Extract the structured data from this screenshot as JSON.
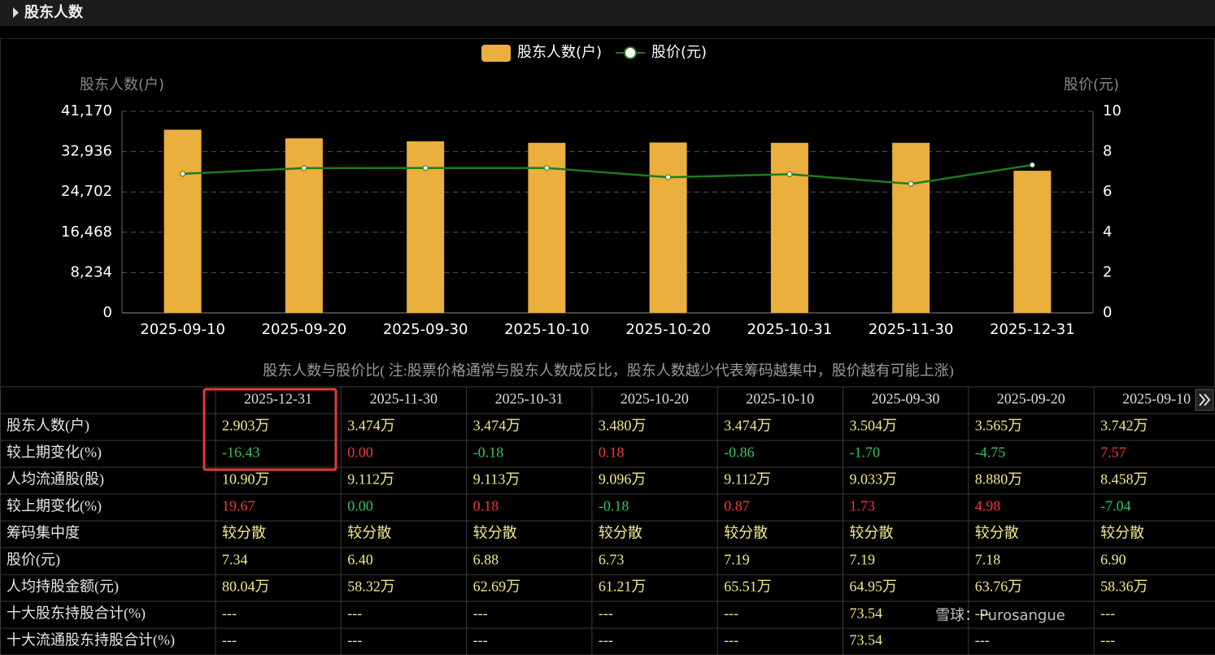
{
  "header": {
    "title": "股东人数"
  },
  "chart_data": {
    "type": "bar",
    "categories": [
      "2025-09-10",
      "2025-09-20",
      "2025-09-30",
      "2025-10-10",
      "2025-10-20",
      "2025-10-31",
      "2025-11-30",
      "2025-12-31"
    ],
    "series": [
      {
        "name": "股东人数(户)",
        "color": "#eaaf3c",
        "values": [
          37420,
          35650,
          35040,
          34740,
          34800,
          34740,
          34740,
          29030
        ]
      },
      {
        "name": "股价(元)",
        "type": "line",
        "axis": "y2",
        "color": "#1f7a1f",
        "values": [
          6.9,
          7.18,
          7.19,
          7.19,
          6.73,
          6.88,
          6.4,
          7.34
        ]
      }
    ],
    "y_label": "股东人数(户)",
    "y2_label": "股价(元)",
    "ylim": [
      0,
      41170
    ],
    "yticks": [
      0,
      {
        "value": 8234,
        "label": "8,234"
      },
      {
        "value": 16468,
        "label": "16,468"
      },
      {
        "value": 24702,
        "label": "24,702"
      },
      {
        "value": 32936,
        "label": "32,936"
      },
      {
        "value": 41170,
        "label": "41,170"
      }
    ],
    "y2lim": [
      0,
      10
    ],
    "y2ticks": [
      0,
      2,
      4,
      6,
      8,
      10
    ],
    "grid": true,
    "legend": "top"
  },
  "caption": "股东人数与股价比( 注:股票价格通常与股东人数成反比，股东人数越少代表筹码越集中，股价越有可能上涨)",
  "table": {
    "columns": [
      "2025-12-31",
      "2025-11-30",
      "2025-10-31",
      "2025-10-20",
      "2025-10-10",
      "2025-09-30",
      "2025-09-20",
      "2025-09-10"
    ],
    "rows": [
      {
        "label": "股东人数(户)",
        "cells": [
          "2.903万",
          "3.474万",
          "3.474万",
          "3.480万",
          "3.474万",
          "3.504万",
          "3.565万",
          "3.742万"
        ],
        "color": "#f2e98a"
      },
      {
        "label": "较上期变化(%)",
        "cells": [
          "-16.43",
          "0.00",
          "-0.18",
          "0.18",
          "-0.86",
          "-1.70",
          "-4.75",
          "7.57"
        ],
        "colors": [
          "#35c45a",
          "#ee3b3b",
          "#35c45a",
          "#ee3b3b",
          "#35c45a",
          "#35c45a",
          "#35c45a",
          "#ee3b3b"
        ]
      },
      {
        "label": "人均流通股(股)",
        "cells": [
          "10.90万",
          "9.112万",
          "9.113万",
          "9.096万",
          "9.112万",
          "9.033万",
          "8.880万",
          "8.458万"
        ],
        "color": "#f2e98a"
      },
      {
        "label": "较上期变化(%)",
        "cells": [
          "19.67",
          "0.00",
          "0.18",
          "-0.18",
          "0.87",
          "1.73",
          "4.98",
          "-7.04"
        ],
        "colors": [
          "#ee3b3b",
          "#35c45a",
          "#ee3b3b",
          "#35c45a",
          "#ee3b3b",
          "#ee3b3b",
          "#ee3b3b",
          "#35c45a"
        ]
      },
      {
        "label": "筹码集中度",
        "cells": [
          "较分散",
          "较分散",
          "较分散",
          "较分散",
          "较分散",
          "较分散",
          "较分散",
          "较分散"
        ],
        "color": "#f2e98a"
      },
      {
        "label": "股价(元)",
        "cells": [
          "7.34",
          "6.40",
          "6.88",
          "6.73",
          "7.19",
          "7.19",
          "7.18",
          "6.90"
        ],
        "color": "#f2e98a"
      },
      {
        "label": "人均持股金额(元)",
        "cells": [
          "80.04万",
          "58.32万",
          "62.69万",
          "61.21万",
          "65.51万",
          "64.95万",
          "63.76万",
          "58.36万"
        ],
        "color": "#f2e98a"
      },
      {
        "label": "十大股东持股合计(%)",
        "cells": [
          "---",
          "---",
          "---",
          "---",
          "---",
          "73.54",
          "---",
          "---"
        ],
        "color": "#f2e98a"
      },
      {
        "label": "十大流通股东持股合计(%)",
        "cells": [
          "---",
          "---",
          "---",
          "---",
          "---",
          "73.54",
          "---",
          "---"
        ],
        "color": "#f2e98a"
      }
    ]
  },
  "watermark": "雪球：Purosangue"
}
